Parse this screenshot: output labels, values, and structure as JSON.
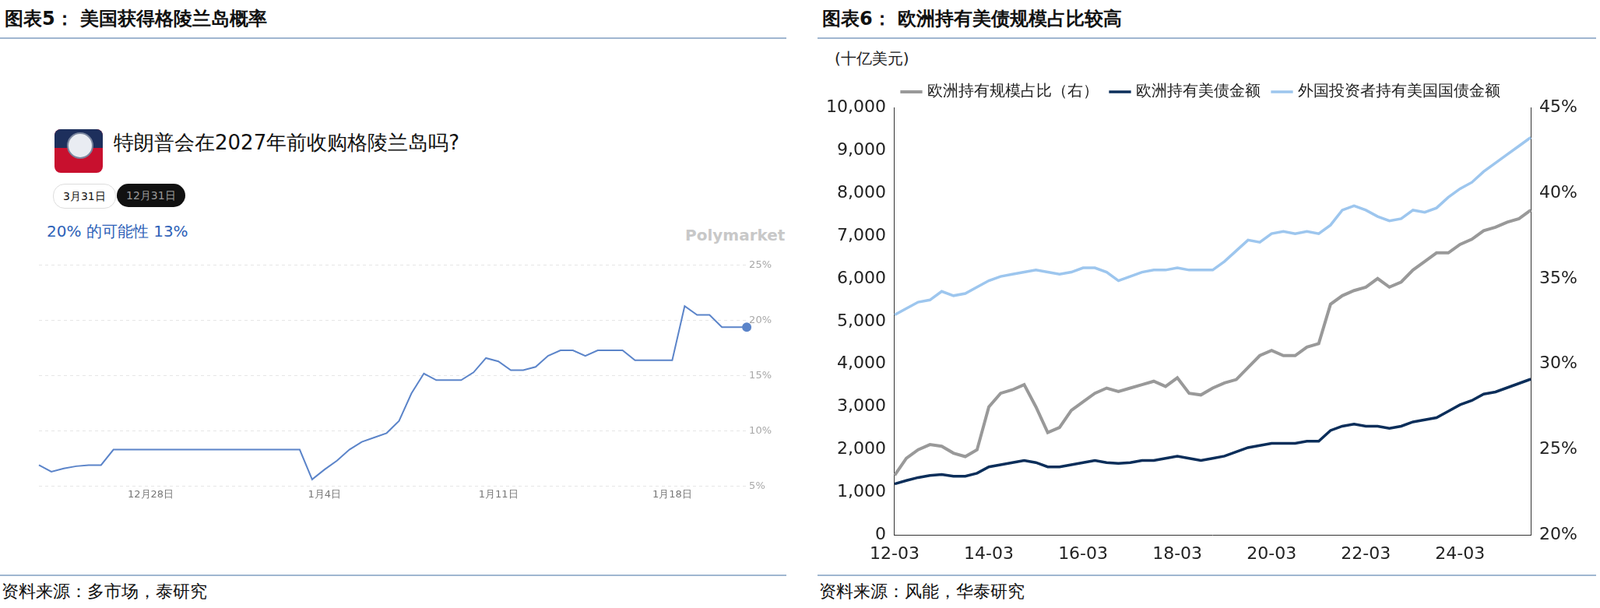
{
  "chart_data": [
    {
      "type": "line",
      "title": "图表5： 美国获得格陵兰岛概率",
      "subtitle": "特朗普会在2027年前收购格陵兰岛吗?",
      "annotations": [
        "3月31日",
        "12月31日",
        "20% 的可能性 13%",
        "Polymarket"
      ],
      "source": "资料来源：多市场，泰研究",
      "categories": [
        null,
        null,
        null,
        null,
        null,
        null,
        null,
        null,
        null,
        "12月28日",
        null,
        null,
        null,
        null,
        null,
        null,
        null,
        null,
        null,
        null,
        null,
        null,
        null,
        "1月4日",
        null,
        null,
        null,
        null,
        null,
        null,
        null,
        null,
        null,
        null,
        null,
        null,
        null,
        "1月11日",
        null,
        null,
        null,
        null,
        null,
        null,
        null,
        null,
        null,
        null,
        null,
        null,
        null,
        "1月18日",
        null,
        null,
        null,
        null,
        null,
        null
      ],
      "values": [
        6.9,
        6.3,
        6.6,
        6.8,
        6.9,
        6.9,
        8.3,
        8.3,
        8.3,
        8.3,
        8.3,
        8.3,
        8.3,
        8.3,
        8.3,
        8.3,
        8.3,
        8.3,
        8.3,
        8.3,
        8.3,
        8.3,
        5.6,
        6.5,
        7.3,
        8.3,
        9.0,
        9.4,
        9.8,
        10.9,
        13.4,
        15.2,
        14.6,
        14.6,
        14.6,
        15.3,
        16.6,
        16.3,
        15.5,
        15.5,
        15.8,
        16.8,
        17.3,
        17.3,
        16.8,
        17.3,
        17.3,
        17.3,
        16.4,
        16.4,
        16.4,
        16.4,
        21.3,
        20.5,
        20.5,
        19.4,
        19.4,
        19.4
      ],
      "color": "#5b84c9",
      "marker": "last",
      "ylim": [
        5,
        25
      ],
      "yticks": [
        {
          "value": 5,
          "label": "5%"
        },
        {
          "value": 10,
          "label": "10%"
        },
        {
          "value": 15,
          "label": "15%"
        },
        {
          "value": 20,
          "label": "20%"
        },
        {
          "value": 25,
          "label": "25%"
        }
      ],
      "grid": true
    },
    {
      "type": "line",
      "title": "图表6： 欧洲持有美债规模占比较高",
      "y_label": "(十亿美元)",
      "source": "资料来源：风能，华泰研究",
      "categories": [
        "12-03",
        null,
        null,
        null,
        null,
        null,
        null,
        null,
        "14-03",
        null,
        null,
        null,
        null,
        null,
        null,
        null,
        "16-03",
        null,
        null,
        null,
        null,
        null,
        null,
        null,
        "18-03",
        null,
        null,
        null,
        null,
        null,
        null,
        null,
        "20-03",
        null,
        null,
        null,
        null,
        null,
        null,
        null,
        "22-03",
        null,
        null,
        null,
        null,
        null,
        null,
        null,
        "24-03",
        null,
        null,
        null,
        null,
        null,
        null
      ],
      "series": [
        {
          "name": "外国投资者持有美国国债金额",
          "color": "#9dc6ee",
          "values": [
            5150,
            5300,
            5450,
            5500,
            5700,
            5600,
            5650,
            5800,
            5950,
            6050,
            6100,
            6150,
            6200,
            6150,
            6100,
            6150,
            6250,
            6250,
            6150,
            5950,
            6050,
            6150,
            6200,
            6200,
            6250,
            6200,
            6200,
            6200,
            6400,
            6650,
            6900,
            6850,
            7050,
            7100,
            7050,
            7100,
            7050,
            7250,
            7600,
            7700,
            7600,
            7450,
            7350,
            7400,
            7600,
            7550,
            7650,
            7900,
            8100,
            8250,
            8500,
            8700,
            8900,
            9100,
            9300
          ]
        },
        {
          "name": "欧洲持有美债金额",
          "color": "#0b2e5a",
          "values": [
            1200,
            1280,
            1350,
            1400,
            1420,
            1380,
            1380,
            1450,
            1600,
            1650,
            1700,
            1750,
            1700,
            1600,
            1600,
            1650,
            1700,
            1750,
            1700,
            1680,
            1700,
            1750,
            1750,
            1800,
            1850,
            1800,
            1750,
            1800,
            1850,
            1950,
            2050,
            2100,
            2150,
            2150,
            2150,
            2200,
            2200,
            2450,
            2550,
            2600,
            2550,
            2550,
            2500,
            2550,
            2650,
            2700,
            2750,
            2900,
            3050,
            3150,
            3300,
            3350,
            3450,
            3550,
            3650
          ]
        },
        {
          "name": "欧洲持有规模占比（右）",
          "color": "#999999",
          "axis": "y2",
          "values": [
            23.5,
            24.5,
            25.0,
            25.3,
            25.2,
            24.8,
            24.6,
            25.0,
            27.5,
            28.3,
            28.5,
            28.8,
            27.5,
            26.0,
            26.3,
            27.3,
            27.8,
            28.3,
            28.6,
            28.4,
            28.6,
            28.8,
            29.0,
            28.7,
            29.2,
            28.3,
            28.2,
            28.6,
            28.9,
            29.1,
            29.8,
            30.5,
            30.8,
            30.5,
            30.5,
            31.0,
            31.2,
            33.5,
            34.0,
            34.3,
            34.5,
            35.0,
            34.5,
            34.8,
            35.5,
            36.0,
            36.5,
            36.5,
            37.0,
            37.3,
            37.8,
            38.0,
            38.3,
            38.5,
            39.0
          ]
        }
      ],
      "ylim": [
        0,
        10000
      ],
      "yticks": [
        0,
        {
          "value": 1000,
          "label": "1,000"
        },
        {
          "value": 2000,
          "label": "2,000"
        },
        {
          "value": 3000,
          "label": "3,000"
        },
        {
          "value": 4000,
          "label": "4,000"
        },
        {
          "value": 5000,
          "label": "5,000"
        },
        {
          "value": 6000,
          "label": "6,000"
        },
        {
          "value": 7000,
          "label": "7,000"
        },
        {
          "value": 8000,
          "label": "8,000"
        },
        {
          "value": 9000,
          "label": "9,000"
        },
        {
          "value": 10000,
          "label": "10,000"
        }
      ],
      "y2lim": [
        20,
        45
      ],
      "y2ticks": [
        {
          "value": 20,
          "label": "20%"
        },
        {
          "value": 25,
          "label": "25%"
        },
        {
          "value": 30,
          "label": "30%"
        },
        {
          "value": 35,
          "label": "35%"
        },
        {
          "value": 40,
          "label": "40%"
        },
        {
          "value": 45,
          "label": "45%"
        }
      ],
      "grid": false,
      "legend": "top"
    }
  ]
}
